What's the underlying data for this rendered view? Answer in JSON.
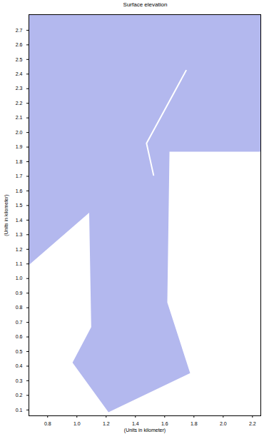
{
  "chart_data": {
    "type": "map",
    "title": "Surface elevation",
    "x_label": "(Units in kilometer)",
    "y_label": "(Units in kilometer)",
    "xlim": [
      0.672,
      2.257
    ],
    "ylim": [
      0.06,
      2.807
    ],
    "xticks": [
      0.8,
      {
        "value": 1,
        "label": "1.0"
      },
      1.2,
      1.4,
      1.6,
      1.8,
      {
        "value": 2,
        "label": "2.0"
      },
      2.2
    ],
    "yticks": [
      0.1,
      0.2,
      0.3,
      0.4,
      0.5,
      0.6,
      0.7,
      0.8,
      0.9,
      {
        "value": 1,
        "label": "1.0"
      },
      1.1,
      1.2,
      1.3,
      1.4,
      1.5,
      1.6,
      1.7,
      1.8,
      1.9,
      {
        "value": 2,
        "label": "2.0"
      },
      2.1,
      2.2,
      2.3,
      2.4,
      2.5,
      2.6,
      2.7
    ],
    "grid": false,
    "series": [
      {
        "color": "#b3b8ee",
        "x": [
          0.672,
          2.257,
          2.257,
          1.633,
          1.618,
          1.774,
          1.216,
          0.97,
          1.098,
          1.084,
          0.672
        ],
        "y": [
          2.807,
          2.807,
          1.868,
          1.868,
          0.836,
          0.352,
          0.085,
          0.424,
          0.667,
          1.451,
          1.093
        ]
      }
    ],
    "structures": [
      {
        "color": "#ffffff",
        "x": [
          1.746,
          1.476,
          1.524
        ],
        "y": [
          2.424,
          1.926,
          1.708
        ]
      }
    ]
  }
}
